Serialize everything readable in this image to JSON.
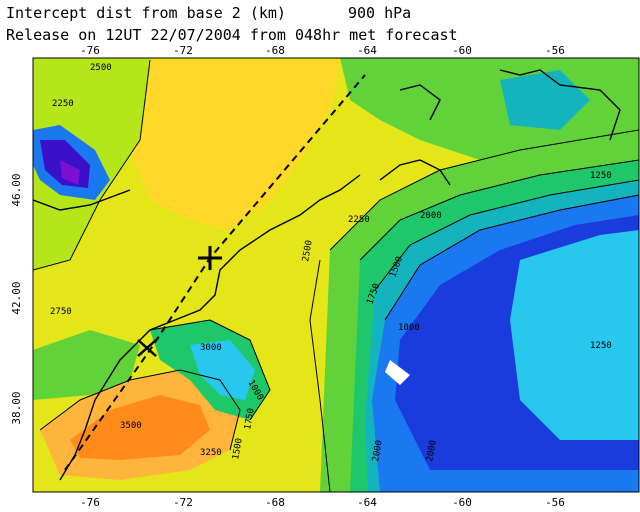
{
  "header": {
    "title_line1": "Intercept dist from base 2 (km)",
    "pressure_level": "900 hPa",
    "title_line2": "Release on 12UT 22/07/2004 from 048hr met forecast"
  },
  "map": {
    "lon_ticks": [
      "-76",
      "-72",
      "-68",
      "-64",
      "-60",
      "-56"
    ],
    "lat_ticks": [
      "46.00",
      "42.00",
      "38.00"
    ],
    "contour_labels": [
      "2500",
      "2250",
      "2000",
      "1750",
      "1500",
      "1250",
      "1000",
      "2750",
      "3000",
      "3500",
      "3250",
      "1000",
      "1250",
      "1500",
      "2250",
      "2000",
      "1750",
      "2500",
      "2000"
    ],
    "colors": {
      "c3500": "#ff8c1a",
      "c3000": "#ffb43c",
      "c2750": "#ffd82a",
      "c2500": "#e4e61a",
      "c2250": "#b4e61a",
      "c2000": "#62d23a",
      "c1750": "#1ec86a",
      "c1500": "#14b4be",
      "c1250": "#28c8ee",
      "c1000": "#1a78f0",
      "c750": "#1a3cdc",
      "c500": "#3a10c8",
      "c250": "#7a10d0"
    }
  }
}
